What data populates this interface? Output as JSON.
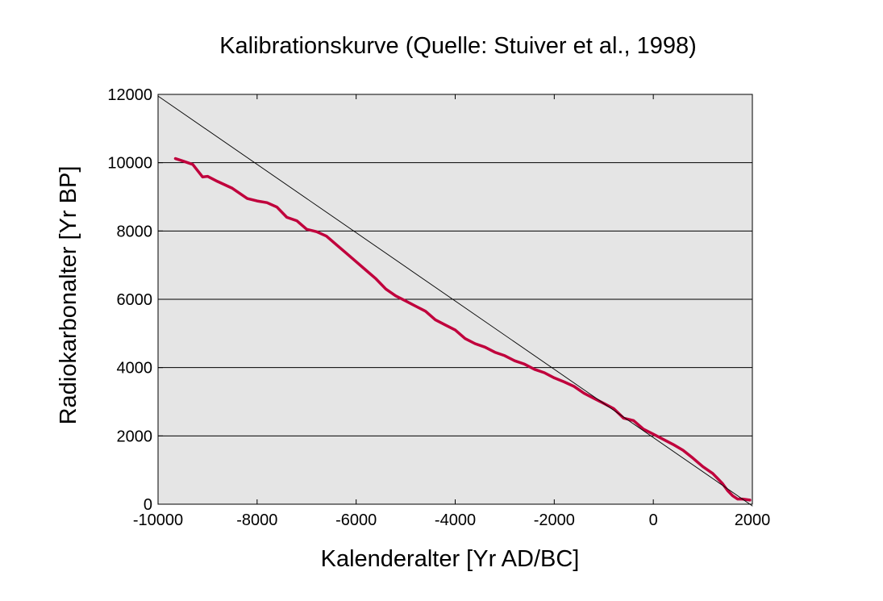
{
  "chart_data": {
    "type": "line",
    "title": "Kalibrationskurve (Quelle: Stuiver et al., 1998)",
    "xlabel": "Kalenderalter [Yr AD/BC]",
    "ylabel": "Radiokarbonalter  [Yr BP]",
    "xlim": [
      -10000,
      2000
    ],
    "ylim": [
      0,
      12000
    ],
    "x_ticks": [
      -10000,
      -8000,
      -6000,
      -4000,
      -2000,
      0,
      2000
    ],
    "y_ticks": [
      0,
      2000,
      4000,
      6000,
      8000,
      10000,
      12000
    ],
    "grid": "horizontal",
    "background_color": "#e5e5e5",
    "series": [
      {
        "color": "#c0003c",
        "x": [
          -9650,
          -9500,
          -9300,
          -9100,
          -9000,
          -8800,
          -8500,
          -8200,
          -8000,
          -7800,
          -7600,
          -7400,
          -7200,
          -7000,
          -6800,
          -6600,
          -6400,
          -6200,
          -6000,
          -5800,
          -5600,
          -5400,
          -5200,
          -5000,
          -4800,
          -4600,
          -4400,
          -4200,
          -4000,
          -3800,
          -3600,
          -3400,
          -3200,
          -3000,
          -2800,
          -2600,
          -2400,
          -2200,
          -2000,
          -1800,
          -1600,
          -1400,
          -1200,
          -1000,
          -800,
          -600,
          -400,
          -200,
          0,
          200,
          400,
          600,
          800,
          1000,
          1200,
          1400,
          1500,
          1600,
          1700,
          1800,
          1950
        ],
        "y": [
          10120,
          10050,
          9950,
          9580,
          9600,
          9450,
          9250,
          8950,
          8880,
          8830,
          8700,
          8400,
          8300,
          8050,
          7980,
          7850,
          7600,
          7350,
          7100,
          6850,
          6600,
          6300,
          6100,
          5950,
          5800,
          5650,
          5400,
          5250,
          5100,
          4850,
          4700,
          4600,
          4450,
          4350,
          4200,
          4100,
          3950,
          3850,
          3700,
          3580,
          3450,
          3250,
          3100,
          2950,
          2800,
          2520,
          2450,
          2200,
          2050,
          1900,
          1750,
          1580,
          1350,
          1100,
          900,
          600,
          400,
          250,
          150,
          150,
          120
        ]
      },
      {
        "color": "#000000",
        "x": [
          -10000,
          2000
        ],
        "y": [
          11950,
          -50
        ]
      }
    ]
  }
}
